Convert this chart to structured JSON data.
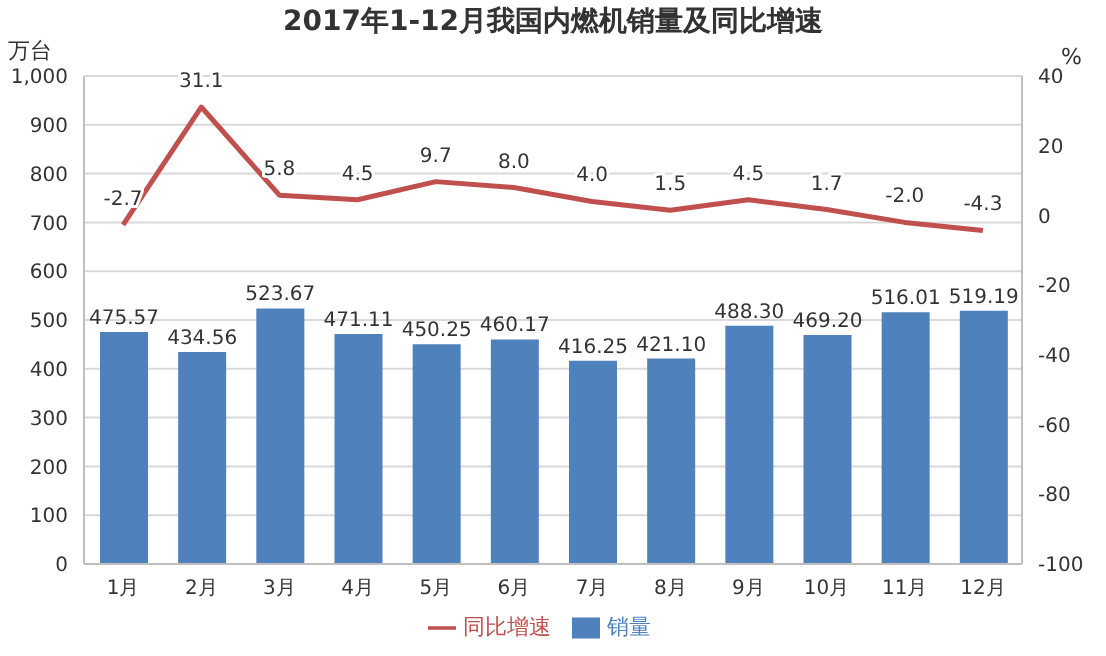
{
  "chart_data": {
    "type": "bar",
    "title": "2017年1-12月我国内燃机销量及同比增速",
    "ylabel": "万台",
    "y2label": "%",
    "categories": [
      "1月",
      "2月",
      "3月",
      "4月",
      "5月",
      "6月",
      "7月",
      "8月",
      "9月",
      "10月",
      "11月",
      "12月"
    ],
    "series": [
      {
        "name": "销量",
        "color": "#4f81bd",
        "values": [
          475.57,
          434.56,
          523.67,
          471.11,
          450.25,
          460.17,
          416.25,
          421.1,
          488.3,
          469.2,
          516.01,
          519.19
        ],
        "value_labels": [
          "475.57",
          "434.56",
          "523.67",
          "471.11",
          "450.25",
          "460.17",
          "416.25",
          "421.10",
          "488.30",
          "469.20",
          "516.01",
          "519.19"
        ]
      },
      {
        "name": "同比增速",
        "type": "line",
        "axis": "y2",
        "color": "#c0504d",
        "values": [
          -2.7,
          31.1,
          5.8,
          4.5,
          9.7,
          8.0,
          4.0,
          1.5,
          4.5,
          1.7,
          -2.0,
          -4.3
        ],
        "value_labels": [
          "-2.7",
          "31.1",
          "5.8",
          "4.5",
          "9.7",
          "8.0",
          "4.0",
          "1.5",
          "4.5",
          "1.7",
          "-2.0",
          "-4.3"
        ]
      }
    ],
    "ylim": [
      0,
      1000
    ],
    "yticks": [
      0,
      100,
      200,
      300,
      400,
      500,
      600,
      700,
      800,
      900,
      {
        "value": 1000,
        "label": "1,000"
      }
    ],
    "y2lim": [
      -100,
      40
    ],
    "y2ticks": [
      -100,
      -80,
      -60,
      -40,
      -20,
      0,
      20,
      40
    ],
    "grid": "y",
    "legend": "bottom",
    "marker": "none",
    "line_style": "solid"
  }
}
